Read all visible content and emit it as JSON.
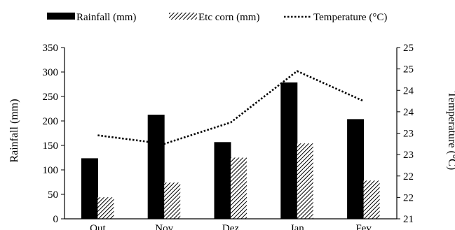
{
  "chart_data": {
    "type": "bar",
    "categories": [
      "Out",
      "Nov",
      "Dez",
      "Jan",
      "Fev"
    ],
    "series": [
      {
        "name": "Rainfall (mm)",
        "kind": "bar",
        "fill": "solid",
        "axis": "left",
        "color": "#000000",
        "values": [
          123,
          212,
          156,
          278,
          203
        ]
      },
      {
        "name": "Etc corn (mm)",
        "kind": "bar",
        "fill": "hatched",
        "axis": "left",
        "color": "#000000",
        "values": [
          44,
          74,
          125,
          154,
          78
        ]
      },
      {
        "name": "Temperature (°C)",
        "kind": "line",
        "style": "dotted",
        "axis": "right",
        "color": "#000000",
        "values": [
          22.95,
          22.75,
          23.25,
          24.45,
          23.75
        ]
      }
    ],
    "ylabel": "Rainfall (mm)",
    "y2label": "Temperature (°C)",
    "ylim": [
      0,
      350
    ],
    "yticks": [
      0,
      50,
      100,
      150,
      200,
      250,
      300,
      350
    ],
    "y2lim": [
      21,
      25
    ],
    "y2ticks": [
      21,
      21.5,
      22,
      22.5,
      23,
      23.5,
      24,
      24.5,
      25
    ],
    "y2ticklabels": [
      "21",
      "22",
      "22",
      "23",
      "23",
      "24",
      "24",
      "25",
      "25"
    ],
    "legend_position": "top",
    "grid": false
  }
}
